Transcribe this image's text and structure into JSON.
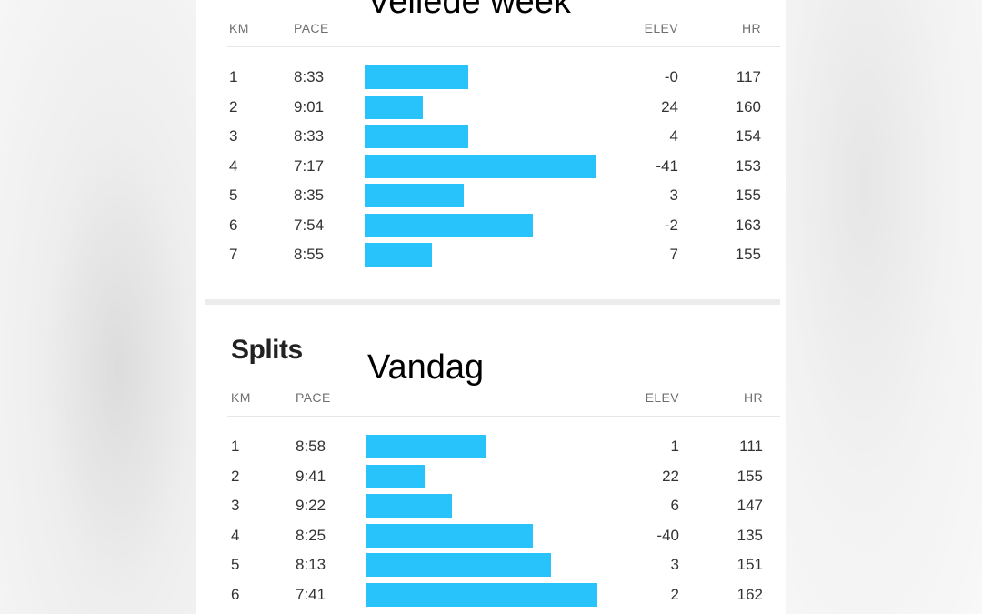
{
  "overlay_top": "Vellede week",
  "overlay_bottom": "Vandag",
  "headers": {
    "km": "KM",
    "pace": "PACE",
    "elev": "ELEV",
    "hr": "HR"
  },
  "section_title": "Splits",
  "bar_color": "#28c3fa",
  "last_week": {
    "rows": [
      {
        "km": "1",
        "pace": "8:33",
        "elev": "-0",
        "hr": "117",
        "bar": 0.45
      },
      {
        "km": "2",
        "pace": "9:01",
        "elev": "24",
        "hr": "160",
        "bar": 0.25
      },
      {
        "km": "3",
        "pace": "8:33",
        "elev": "4",
        "hr": "154",
        "bar": 0.45
      },
      {
        "km": "4",
        "pace": "7:17",
        "elev": "-41",
        "hr": "153",
        "bar": 1.0
      },
      {
        "km": "5",
        "pace": "8:35",
        "elev": "3",
        "hr": "155",
        "bar": 0.43
      },
      {
        "km": "6",
        "pace": "7:54",
        "elev": "-2",
        "hr": "163",
        "bar": 0.73
      },
      {
        "km": "7",
        "pace": "8:55",
        "elev": "7",
        "hr": "155",
        "bar": 0.29
      }
    ]
  },
  "today": {
    "rows": [
      {
        "km": "1",
        "pace": "8:58",
        "elev": "1",
        "hr": "111",
        "bar": 0.52
      },
      {
        "km": "2",
        "pace": "9:41",
        "elev": "22",
        "hr": "155",
        "bar": 0.25
      },
      {
        "km": "3",
        "pace": "9:22",
        "elev": "6",
        "hr": "147",
        "bar": 0.37
      },
      {
        "km": "4",
        "pace": "8:25",
        "elev": "-40",
        "hr": "135",
        "bar": 0.72
      },
      {
        "km": "5",
        "pace": "8:13",
        "elev": "3",
        "hr": "151",
        "bar": 0.8
      },
      {
        "km": "6",
        "pace": "7:41",
        "elev": "2",
        "hr": "162",
        "bar": 1.0
      }
    ]
  }
}
